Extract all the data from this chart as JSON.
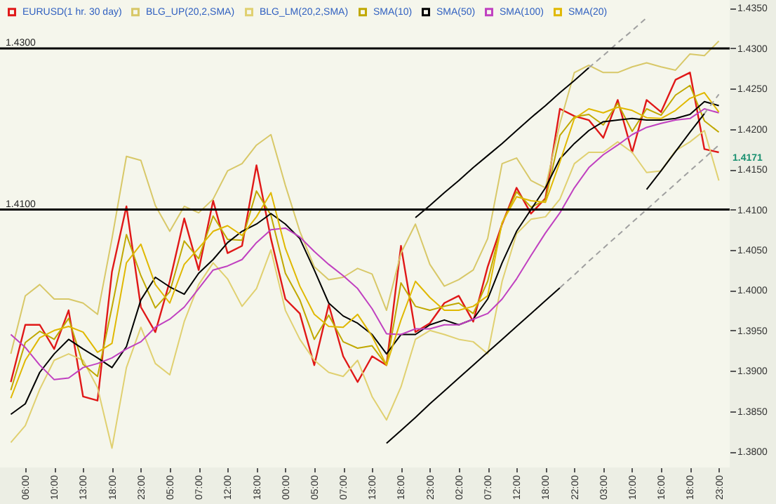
{
  "chart_data": {
    "type": "line",
    "categories": [
      null,
      "06:00",
      null,
      "10:00",
      null,
      "13:00",
      null,
      "18:00",
      null,
      "23:00",
      null,
      "05:00",
      null,
      "07:00",
      null,
      "12:00",
      null,
      "18:00",
      null,
      "00:00",
      null,
      "05:00",
      null,
      "07:00",
      null,
      "13:00",
      null,
      "18:00",
      null,
      "23:00",
      null,
      "02:00",
      null,
      "07:00",
      null,
      "12:00",
      null,
      "18:00",
      null,
      "22:00",
      null,
      "03:00",
      null,
      "10:00",
      null,
      "16:00",
      null,
      "18:00",
      null,
      "23:00"
    ],
    "series": [
      {
        "name": "EURUSD(1 hr. 30 day)",
        "color": "#e01818",
        "values": [
          1.3886,
          1.3957,
          1.3957,
          1.3927,
          1.3975,
          1.3868,
          1.3863,
          1.4023,
          1.4104,
          1.3979,
          1.3948,
          1.4011,
          1.4089,
          1.4025,
          1.4111,
          1.4046,
          1.4055,
          1.4155,
          1.4064,
          1.3989,
          1.3971,
          1.3907,
          1.3982,
          1.3918,
          1.3886,
          1.3918,
          1.3907,
          1.4055,
          1.3948,
          1.3959,
          1.3984,
          1.3993,
          1.3961,
          1.4029,
          1.4082,
          1.4127,
          1.4095,
          1.4114,
          1.4225,
          1.4216,
          1.4211,
          1.4189,
          1.4236,
          1.4171,
          1.4236,
          1.4221,
          1.4261,
          1.427,
          1.4175,
          1.4171
        ]
      },
      {
        "name": "BLG_UP(20,2,SMA)",
        "color": "#d8c868",
        "values": [
          1.3921,
          1.3993,
          1.4007,
          1.3989,
          1.3989,
          1.3984,
          1.397,
          1.4064,
          1.4166,
          1.4161,
          1.4105,
          1.4073,
          1.4104,
          1.4096,
          1.4113,
          1.4148,
          1.4157,
          1.418,
          1.4193,
          1.413,
          1.4073,
          1.4029,
          1.4013,
          1.4016,
          1.4027,
          1.402,
          1.3975,
          1.4046,
          1.4082,
          1.4032,
          1.4005,
          1.4013,
          1.4025,
          1.4064,
          1.4157,
          1.4164,
          1.4136,
          1.4127,
          1.4207,
          1.427,
          1.4279,
          1.427,
          1.427,
          1.4277,
          1.4282,
          1.4277,
          1.4273,
          1.4293,
          1.4291,
          1.4309
        ]
      },
      {
        "name": "BLG_LM(20,2,SMA)",
        "color": "#e0d070",
        "values": [
          1.3811,
          1.3832,
          1.3877,
          1.3913,
          1.3921,
          1.3913,
          1.3879,
          1.3804,
          1.3904,
          1.3954,
          1.3909,
          1.3895,
          1.3961,
          1.4007,
          1.4034,
          1.4014,
          1.398,
          1.4002,
          1.405,
          1.3975,
          1.3939,
          1.3913,
          1.3898,
          1.3893,
          1.3913,
          1.3868,
          1.3839,
          1.388,
          1.3939,
          1.395,
          1.3945,
          1.3939,
          1.3936,
          1.3921,
          1.4011,
          1.407,
          1.4088,
          1.4091,
          1.4113,
          1.4157,
          1.4171,
          1.4171,
          1.4184,
          1.4171,
          1.4146,
          1.4148,
          1.4173,
          1.4184,
          1.4198,
          1.4136
        ]
      },
      {
        "name": "SMA(10)",
        "color": "#c0a800",
        "values": [
          1.3876,
          1.3935,
          1.3949,
          1.3939,
          1.3965,
          1.3908,
          1.3893,
          1.3979,
          1.4069,
          1.4018,
          1.3978,
          1.3998,
          1.4061,
          1.4039,
          1.4092,
          1.4063,
          1.4062,
          1.4123,
          1.4093,
          1.4021,
          1.3988,
          1.3939,
          1.3969,
          1.3936,
          1.3928,
          1.3931,
          1.3907,
          1.4009,
          1.398,
          1.3975,
          1.398,
          1.3984,
          1.3971,
          1.4011,
          1.4083,
          1.4122,
          1.4103,
          1.4112,
          1.4192,
          1.4215,
          1.4218,
          1.4205,
          1.4232,
          1.4197,
          1.4225,
          1.4217,
          1.4242,
          1.4254,
          1.421,
          1.4196
        ]
      },
      {
        "name": "SMA(50)",
        "color": "#000000",
        "values": [
          1.3846,
          1.3859,
          1.3898,
          1.3921,
          1.3939,
          1.3927,
          1.3916,
          1.3904,
          1.393,
          1.3988,
          1.4016,
          1.4004,
          1.3995,
          1.4021,
          1.4038,
          1.4059,
          1.4073,
          1.4082,
          1.4095,
          1.4082,
          1.4064,
          1.4025,
          1.3984,
          1.3968,
          1.3959,
          1.3945,
          1.3921,
          1.3945,
          1.3945,
          1.3957,
          1.3963,
          1.3957,
          1.3964,
          1.3989,
          1.4034,
          1.4073,
          1.41,
          1.4127,
          1.4163,
          1.4182,
          1.4198,
          1.4209,
          1.4211,
          1.4213,
          1.4211,
          1.4211,
          1.4213,
          1.4218,
          1.4234,
          1.4229
        ]
      },
      {
        "name": "SMA(100)",
        "color": "#c040c0",
        "values": [
          1.3945,
          1.3929,
          1.3907,
          1.3889,
          1.3891,
          1.3904,
          1.3909,
          1.3916,
          1.3927,
          1.3936,
          1.3954,
          1.3964,
          1.3979,
          1.4002,
          1.4025,
          1.403,
          1.4038,
          1.4059,
          1.4075,
          1.4077,
          1.4066,
          1.4048,
          1.4032,
          1.4018,
          1.4002,
          1.3977,
          1.3946,
          1.3945,
          1.3952,
          1.3952,
          1.3957,
          1.3957,
          1.3964,
          1.3971,
          1.3989,
          1.4014,
          1.4043,
          1.4071,
          1.4096,
          1.4127,
          1.4152,
          1.4168,
          1.418,
          1.4193,
          1.4202,
          1.4207,
          1.4211,
          1.4213,
          1.4225,
          1.422
        ]
      },
      {
        "name": "SMA(20)",
        "color": "#e0b800",
        "values": [
          1.3866,
          1.3913,
          1.3941,
          1.395,
          1.3955,
          1.3948,
          1.3923,
          1.3934,
          1.4034,
          1.4057,
          1.4007,
          1.3984,
          1.4032,
          1.4052,
          1.4073,
          1.408,
          1.4068,
          1.4091,
          1.4121,
          1.4052,
          1.4005,
          1.397,
          1.3955,
          1.3954,
          1.397,
          1.3943,
          1.3907,
          1.3963,
          1.4011,
          1.3991,
          1.3975,
          1.3975,
          1.398,
          1.3993,
          1.4084,
          1.4116,
          1.4111,
          1.4109,
          1.4159,
          1.4213,
          1.4225,
          1.422,
          1.4227,
          1.4223,
          1.4214,
          1.4213,
          1.4223,
          1.4238,
          1.4245,
          1.4221
        ]
      },
      {
        "type": "line",
        "color": "#000000",
        "line_style": "solid",
        "values": [
          null,
          null,
          null,
          null,
          null,
          null,
          null,
          null,
          null,
          null,
          null,
          null,
          null,
          null,
          null,
          null,
          null,
          null,
          null,
          null,
          null,
          null,
          null,
          null,
          null,
          null,
          1.381,
          1.3826,
          1.3842,
          1.3859,
          1.3875,
          1.3891,
          1.3907,
          1.3923,
          1.3939,
          1.3955,
          1.3971,
          1.3987,
          1.4003,
          null,
          null,
          null,
          null,
          null,
          null,
          null,
          null,
          null,
          null,
          null
        ]
      },
      {
        "type": "line",
        "color": "#a0a0a0",
        "line_style": "dashed",
        "values": [
          null,
          null,
          null,
          null,
          null,
          null,
          null,
          null,
          null,
          null,
          null,
          null,
          null,
          null,
          null,
          null,
          null,
          null,
          null,
          null,
          null,
          null,
          null,
          null,
          null,
          null,
          null,
          null,
          null,
          null,
          null,
          null,
          null,
          null,
          null,
          null,
          null,
          null,
          1.4003,
          1.4019,
          1.4036,
          1.4052,
          1.4068,
          1.4084,
          1.41,
          1.4116,
          1.4132,
          1.4148,
          1.4164,
          1.418
        ]
      },
      {
        "type": "line",
        "color": "#000000",
        "line_style": "solid",
        "values": [
          null,
          null,
          null,
          null,
          null,
          null,
          null,
          null,
          null,
          null,
          null,
          null,
          null,
          null,
          null,
          null,
          null,
          null,
          null,
          null,
          null,
          null,
          null,
          null,
          null,
          null,
          null,
          null,
          1.409,
          1.4105,
          1.4121,
          1.4136,
          1.4152,
          1.4167,
          1.4182,
          1.4198,
          1.4214,
          1.4229,
          1.4245,
          1.426,
          1.4276,
          null,
          null,
          null,
          null,
          null,
          null,
          null,
          null,
          null
        ]
      },
      {
        "type": "line",
        "color": "#a0a0a0",
        "line_style": "dashed",
        "values": [
          null,
          null,
          null,
          null,
          null,
          null,
          null,
          null,
          null,
          null,
          null,
          null,
          null,
          null,
          null,
          null,
          null,
          null,
          null,
          null,
          null,
          null,
          null,
          null,
          null,
          null,
          null,
          null,
          null,
          null,
          null,
          null,
          null,
          null,
          null,
          null,
          null,
          null,
          null,
          null,
          1.4276,
          1.4291,
          1.4307,
          1.4322,
          1.4338,
          null,
          null,
          null,
          null,
          null
        ]
      },
      {
        "type": "line",
        "color": "#000000",
        "line_style": "solid",
        "values": [
          null,
          null,
          null,
          null,
          null,
          null,
          null,
          null,
          null,
          null,
          null,
          null,
          null,
          null,
          null,
          null,
          null,
          null,
          null,
          null,
          null,
          null,
          null,
          null,
          null,
          null,
          null,
          null,
          null,
          null,
          null,
          null,
          null,
          null,
          null,
          null,
          null,
          null,
          null,
          null,
          null,
          null,
          null,
          null,
          1.4125,
          1.4148,
          1.4172,
          1.4196,
          1.4219,
          null
        ]
      },
      {
        "type": "line",
        "color": "#a0a0a0",
        "line_style": "dashed",
        "values": [
          null,
          null,
          null,
          null,
          null,
          null,
          null,
          null,
          null,
          null,
          null,
          null,
          null,
          null,
          null,
          null,
          null,
          null,
          null,
          null,
          null,
          null,
          null,
          null,
          null,
          null,
          null,
          null,
          null,
          null,
          null,
          null,
          null,
          null,
          null,
          null,
          null,
          null,
          null,
          null,
          null,
          null,
          null,
          null,
          null,
          null,
          null,
          null,
          1.4219,
          1.4243
        ]
      }
    ],
    "ylim": [
      1.378,
      1.436
    ],
    "yticks": [
      {
        "value": 1.38,
        "label": "1.3800"
      },
      {
        "value": 1.385,
        "label": "1.3850"
      },
      {
        "value": 1.39,
        "label": "1.3900"
      },
      {
        "value": 1.395,
        "label": "1.3950"
      },
      {
        "value": 1.4,
        "label": "1.4000"
      },
      {
        "value": 1.405,
        "label": "1.4050"
      },
      {
        "value": 1.41,
        "label": "1.4100"
      },
      {
        "value": 1.415,
        "label": "1.4150"
      },
      {
        "value": 1.42,
        "label": "1.4200"
      },
      {
        "value": 1.425,
        "label": "1.4250"
      },
      {
        "value": 1.43,
        "label": "1.4300"
      },
      {
        "value": 1.435,
        "label": "1.4350"
      }
    ],
    "ref_lines": [
      {
        "axis": "y",
        "value": 1.43,
        "label": "1.4300",
        "color": "#000000"
      },
      {
        "axis": "y",
        "value": 1.41,
        "label": "1.4100",
        "color": "#000000"
      }
    ],
    "annotations": [
      "1.4171"
    ],
    "grid": false,
    "legend": "top left",
    "marker": "none",
    "line_style": "solid"
  }
}
